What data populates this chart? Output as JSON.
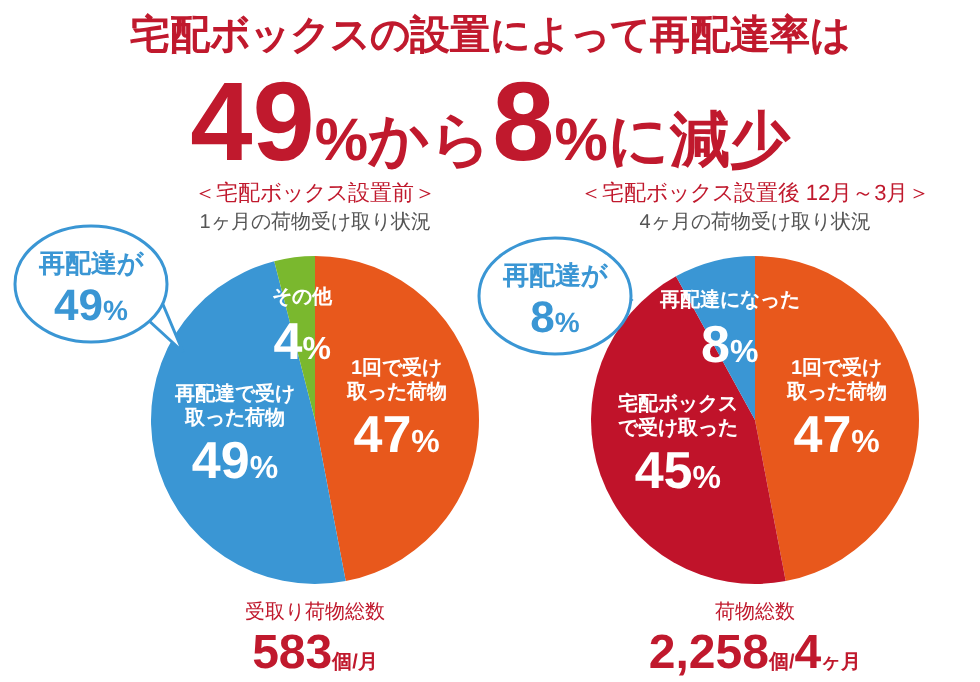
{
  "chart_data": [
    {
      "type": "pie",
      "title": "＜宅配ボックス設置前＞",
      "subtitle": "1ヶ月の荷物受け取り状況",
      "categories": [
        "1回で受け取った荷物",
        "再配達で受け取った荷物",
        "その他"
      ],
      "values": [
        47,
        49,
        4
      ],
      "value_labels": [
        "47%",
        "49%",
        "4%"
      ],
      "colors": [
        "#e8581c",
        "#3a96d4",
        "#7ab82e"
      ],
      "annotations": [
        "宅配ボックスの設置によって再配達率は",
        "49%から8%に減少",
        "再配達が",
        "49%",
        "受取り荷物総数",
        "583個/月"
      ]
    },
    {
      "type": "pie",
      "title": "＜宅配ボックス設置後 12月～3月＞",
      "subtitle": "4ヶ月の荷物受け取り状況",
      "categories": [
        "1回で受け取った荷物",
        "宅配ボックスで受け取った",
        "再配達になった"
      ],
      "values": [
        47,
        45,
        8
      ],
      "value_labels": [
        "47%",
        "45%",
        "8%"
      ],
      "colors": [
        "#e8581c",
        "#c0132a",
        "#3a96d4"
      ],
      "annotations": [
        "再配達が",
        "8%",
        "荷物総数",
        "2,258個/4ヶ月"
      ]
    }
  ]
}
